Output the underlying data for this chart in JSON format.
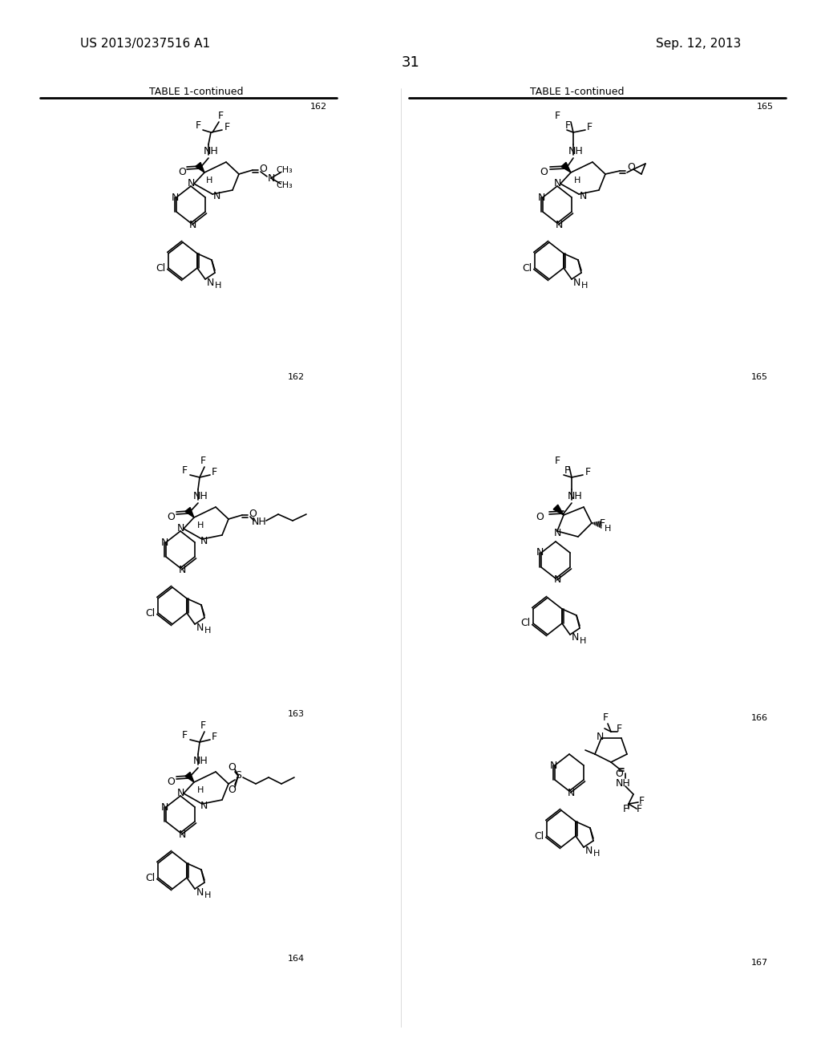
{
  "page_number": "31",
  "patent_number": "US 2013/0237516 A1",
  "patent_date": "Sep. 12, 2013",
  "table_title": "TABLE 1-continued",
  "compound_numbers": [
    "162",
    "163",
    "164",
    "165",
    "166",
    "167"
  ],
  "background_color": "#ffffff",
  "text_color": "#000000",
  "line_color": "#000000"
}
